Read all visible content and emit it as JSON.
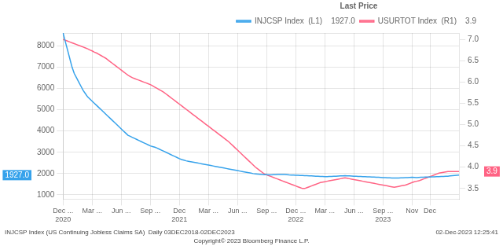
{
  "chart_data": {
    "type": "line",
    "legend": "upper right",
    "legend_title": "Last Price",
    "grid": true,
    "categories": [
      [
        "Dec ...",
        "2020"
      ],
      null,
      null,
      null,
      null,
      null,
      null,
      null,
      null,
      null,
      null,
      null,
      null,
      "Mar ...",
      null,
      null,
      null,
      null,
      null,
      null,
      null,
      null,
      null,
      null,
      null,
      null,
      "Jun ...",
      null,
      null,
      null,
      null,
      null,
      null,
      null,
      null,
      null,
      null,
      null,
      null,
      "Sep ...",
      null,
      null,
      null,
      null,
      null,
      null,
      null,
      null,
      null,
      null,
      null,
      null,
      [
        "Dec",
        "2021"
      ],
      null,
      null,
      null,
      null,
      null,
      null,
      null,
      null,
      null,
      null,
      null,
      null,
      "Mar ...",
      null,
      null,
      null,
      null,
      null,
      null,
      null,
      null,
      null,
      null,
      null,
      null,
      "Jun ...",
      null,
      null,
      null,
      null,
      null,
      null,
      null,
      null,
      null,
      null,
      null,
      null,
      "Sep ...",
      null,
      null,
      null,
      null,
      null,
      null,
      null,
      null,
      null,
      null,
      null,
      null,
      [
        "Dec ...",
        "2022"
      ],
      null,
      null,
      null,
      null,
      null,
      null,
      null,
      null,
      null,
      null,
      null,
      null,
      "Mar ...",
      null,
      null,
      null,
      null,
      null,
      null,
      null,
      null,
      null,
      null,
      null,
      null,
      "Jun ...",
      null,
      null,
      null,
      null,
      null,
      null,
      null,
      null,
      null,
      null,
      null,
      null,
      [
        "Sep ...",
        "2023"
      ],
      null,
      null,
      null,
      null,
      null,
      null,
      null,
      null,
      null,
      null,
      null,
      null,
      "Nov",
      null,
      null,
      null,
      null,
      null,
      null,
      null,
      "Dec",
      null,
      null,
      null,
      null,
      null,
      null,
      null,
      null,
      null,
      null,
      null,
      null,
      null
    ],
    "ylim": [
      800,
      8600
    ],
    "yticks": [
      1000,
      2000,
      3000,
      4000,
      5000,
      6000,
      7000,
      8000
    ],
    "y2lim": [
      3.25,
      7.15
    ],
    "y2ticks": [
      3.5,
      {
        "value": 4,
        "label": "4.0"
      },
      4.5,
      {
        "value": 5,
        "label": "5.0"
      },
      5.5,
      {
        "value": 6,
        "label": "6.0"
      },
      6.5,
      {
        "value": 7,
        "label": "7.0"
      }
    ],
    "series": [
      {
        "name": "INJCSP Index  (L1)    1927.0",
        "values": [
          8600,
          8200,
          7800,
          7400,
          7000,
          6700,
          6500,
          6300,
          6100,
          5900,
          5750,
          5600,
          5500,
          5400,
          5300,
          5200,
          5100,
          5000,
          4900,
          4800,
          4700,
          4600,
          4500,
          4400,
          4300,
          4200,
          4100,
          4000,
          3900,
          3800,
          3750,
          3700,
          3650,
          3600,
          3550,
          3500,
          3450,
          3400,
          3350,
          3300,
          3270,
          3240,
          3200,
          3150,
          3100,
          3050,
          3000,
          2950,
          2900,
          2850,
          2800,
          2750,
          2700,
          2660,
          2630,
          2600,
          2580,
          2560,
          2540,
          2520,
          2500,
          2480,
          2460,
          2440,
          2420,
          2400,
          2380,
          2360,
          2340,
          2320,
          2300,
          2280,
          2260,
          2240,
          2220,
          2200,
          2180,
          2160,
          2140,
          2120,
          2100,
          2080,
          2060,
          2040,
          2020,
          2000,
          1990,
          1980,
          1970,
          1960,
          1950,
          1945,
          1940,
          1940,
          1945,
          1950,
          1955,
          1960,
          1960,
          1955,
          1950,
          1940,
          1935,
          1930,
          1925,
          1920,
          1915,
          1910,
          1905,
          1900,
          1895,
          1890,
          1885,
          1880,
          1875,
          1870,
          1865,
          1860,
          1860,
          1865,
          1870,
          1875,
          1880,
          1885,
          1890,
          1895,
          1900,
          1895,
          1890,
          1885,
          1880,
          1875,
          1870,
          1865,
          1860,
          1855,
          1850,
          1845,
          1840,
          1835,
          1830,
          1825,
          1820,
          1815,
          1810,
          1805,
          1800,
          1795,
          1790,
          1790,
          1795,
          1800,
          1805,
          1810,
          1815,
          1820,
          1825,
          1820,
          1815,
          1820,
          1825,
          1830,
          1835,
          1840,
          1840,
          1845,
          1850,
          1855,
          1860,
          1865,
          1870,
          1875,
          1880,
          1890,
          1900,
          1910,
          1920,
          1927
        ]
      },
      {
        "name": "USURTOT Index  (R1)    3.9",
        "axis": "y2",
        "values": [
          7.0,
          6.98,
          6.96,
          6.94,
          6.92,
          6.9,
          6.88,
          6.86,
          6.84,
          6.82,
          6.8,
          6.78,
          6.75,
          6.73,
          6.7,
          6.68,
          6.65,
          6.62,
          6.59,
          6.56,
          6.52,
          6.48,
          6.44,
          6.4,
          6.36,
          6.32,
          6.28,
          6.24,
          6.2,
          6.16,
          6.13,
          6.1,
          6.08,
          6.06,
          6.04,
          6.02,
          6.0,
          5.98,
          5.96,
          5.94,
          5.91,
          5.88,
          5.85,
          5.82,
          5.79,
          5.76,
          5.72,
          5.68,
          5.64,
          5.6,
          5.56,
          5.52,
          5.48,
          5.44,
          5.4,
          5.36,
          5.32,
          5.28,
          5.24,
          5.2,
          5.16,
          5.12,
          5.08,
          5.04,
          5.0,
          4.96,
          4.92,
          4.88,
          4.84,
          4.8,
          4.76,
          4.72,
          4.68,
          4.64,
          4.6,
          4.55,
          4.5,
          4.45,
          4.4,
          4.35,
          4.3,
          4.25,
          4.2,
          4.15,
          4.1,
          4.05,
          4.0,
          3.96,
          3.92,
          3.88,
          3.84,
          3.82,
          3.8,
          3.78,
          3.76,
          3.74,
          3.72,
          3.7,
          3.68,
          3.66,
          3.64,
          3.62,
          3.6,
          3.58,
          3.56,
          3.54,
          3.52,
          3.5,
          3.5,
          3.52,
          3.54,
          3.56,
          3.58,
          3.6,
          3.62,
          3.64,
          3.65,
          3.66,
          3.67,
          3.68,
          3.69,
          3.7,
          3.71,
          3.72,
          3.73,
          3.74,
          3.75,
          3.74,
          3.73,
          3.72,
          3.71,
          3.7,
          3.69,
          3.68,
          3.67,
          3.66,
          3.65,
          3.64,
          3.63,
          3.62,
          3.61,
          3.6,
          3.59,
          3.58,
          3.57,
          3.56,
          3.55,
          3.54,
          3.53,
          3.54,
          3.55,
          3.56,
          3.57,
          3.58,
          3.6,
          3.62,
          3.64,
          3.66,
          3.67,
          3.68,
          3.7,
          3.72,
          3.74,
          3.76,
          3.78,
          3.8,
          3.82,
          3.84,
          3.86,
          3.87,
          3.88,
          3.89,
          3.9,
          3.9,
          3.9,
          3.9,
          3.9,
          3.9
        ]
      }
    ],
    "annotations": [
      {
        "text": "1927.0",
        "axis": "y",
        "y": 1927
      },
      {
        "text": "3.9",
        "axis": "y2",
        "y": 3.9
      }
    ],
    "footer": [
      "INJCSP Index (US Continuing Jobless Claims SA)  Daily 03DEC2018-02DEC2023",
      "Copyright© 2023 Bloomberg Finance L.P.",
      "02-Dec-2023 12:25:41"
    ]
  }
}
